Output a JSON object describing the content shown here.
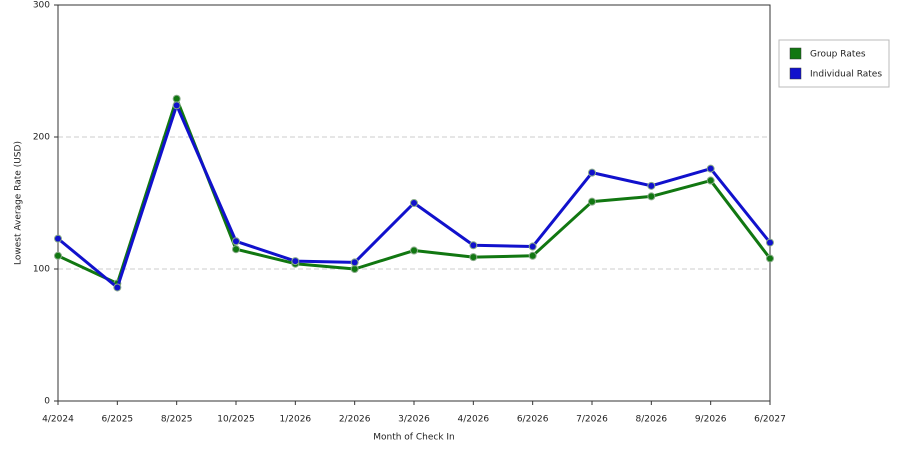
{
  "chart_data": {
    "type": "line",
    "x_label": "Month of Check In",
    "y_label": "Lowest Average Rate (USD)",
    "categories": [
      "4/2024",
      "6/2025",
      "8/2025",
      "10/2025",
      "1/2026",
      "2/2026",
      "3/2026",
      "4/2026",
      "6/2026",
      "7/2026",
      "8/2026",
      "9/2026",
      "6/2027"
    ],
    "series": [
      {
        "name": "Group Rates",
        "color": "#117711",
        "values": [
          110,
          89,
          229,
          115,
          104,
          100,
          114,
          109,
          110,
          151,
          155,
          167,
          108
        ]
      },
      {
        "name": "Individual Rates",
        "color": "#1111cc",
        "values": [
          123,
          86,
          224,
          121,
          106,
          105,
          150,
          118,
          117,
          173,
          163,
          176,
          120
        ]
      }
    ],
    "ylim": [
      0,
      300
    ],
    "yticks": [
      0,
      100,
      200,
      300
    ],
    "grid": true,
    "legend": "right"
  }
}
